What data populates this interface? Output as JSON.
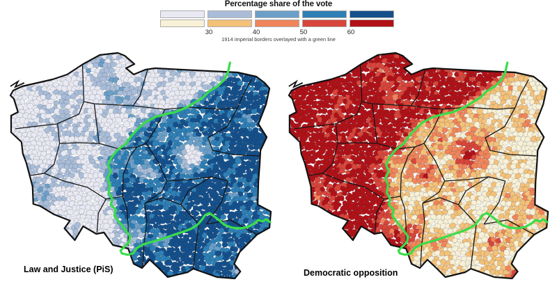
{
  "legend": {
    "title": "Percentage share of the vote",
    "subtitle": "1914 imperial borders overlayed with a green line",
    "tick_labels": [
      "30",
      "40",
      "50",
      "60"
    ],
    "class_breaks": [
      30,
      40,
      50,
      60
    ]
  },
  "colors": {
    "pis_scale": [
      "#e8e9f2",
      "#a9bdd9",
      "#6b9fc8",
      "#2e7fb5",
      "#14508c"
    ],
    "opposition_scale": [
      "#f8f1d7",
      "#f4c179",
      "#f0845a",
      "#d8453a",
      "#b11117"
    ],
    "imperial_border_green": "#39dd49",
    "national_border": "#111111",
    "province_border": "#161616",
    "municipality_border": "#24303a"
  },
  "maps": [
    {
      "id": "pis",
      "label": "Law and Justice (PiS)",
      "scale": "pis_scale",
      "spatial_pattern": "high share (50-60%+) east and south of the green 1914 border (former Russian and Austrian partitions); low share (<30-40%) in the west (former Prussian partition) and in large cities"
    },
    {
      "id": "opposition",
      "label": "Democratic opposition",
      "scale": "opposition_scale",
      "spatial_pattern": "high share (50-60%+) in the west (former Prussian partition) and in large cities; low share (<30-40%) east and south of the green 1914 border"
    }
  ],
  "chart_data": {
    "type": "choropleth",
    "title": "Percentage share of the vote",
    "unit": "percent",
    "class_breaks": [
      30,
      40,
      50,
      60
    ],
    "panels": [
      {
        "name": "Law and Justice (PiS)",
        "palette_ref": "pis_scale"
      },
      {
        "name": "Democratic opposition",
        "palette_ref": "opposition_scale"
      }
    ],
    "annotation": "1914 imperial borders overlayed with a green line"
  },
  "geometry": {
    "poland_outline": [
      [
        17,
        66
      ],
      [
        30,
        60
      ],
      [
        52,
        55
      ],
      [
        74,
        50
      ],
      [
        95,
        43
      ],
      [
        118,
        28
      ],
      [
        142,
        15
      ],
      [
        168,
        12
      ],
      [
        178,
        16
      ],
      [
        192,
        28
      ],
      [
        180,
        34
      ],
      [
        191,
        43
      ],
      [
        208,
        36
      ],
      [
        222,
        34
      ],
      [
        260,
        36
      ],
      [
        300,
        38
      ],
      [
        341,
        40
      ],
      [
        368,
        46
      ],
      [
        380,
        55
      ],
      [
        387,
        63
      ],
      [
        382,
        86
      ],
      [
        371,
        114
      ],
      [
        383,
        133
      ],
      [
        374,
        152
      ],
      [
        373,
        170
      ],
      [
        371,
        196
      ],
      [
        370,
        230
      ],
      [
        389,
        240
      ],
      [
        387,
        263
      ],
      [
        369,
        273
      ],
      [
        344,
        298
      ],
      [
        336,
        315
      ],
      [
        345,
        326
      ],
      [
        337,
        336
      ],
      [
        311,
        334
      ],
      [
        277,
        322
      ],
      [
        269,
        327
      ],
      [
        240,
        334
      ],
      [
        227,
        321
      ],
      [
        214,
        309
      ],
      [
        203,
        321
      ],
      [
        191,
        315
      ],
      [
        183,
        293
      ],
      [
        161,
        288
      ],
      [
        148,
        270
      ],
      [
        137,
        272
      ],
      [
        118,
        261
      ],
      [
        106,
        281
      ],
      [
        91,
        264
      ],
      [
        99,
        253
      ],
      [
        76,
        244
      ],
      [
        56,
        232
      ],
      [
        46,
        229
      ],
      [
        45,
        204
      ],
      [
        36,
        170
      ],
      [
        31,
        157
      ],
      [
        29,
        140
      ],
      [
        14,
        126
      ],
      [
        14,
        102
      ],
      [
        24,
        97
      ],
      [
        18,
        78
      ],
      [
        13,
        73
      ]
    ],
    "imperial_border_1914": [
      [
        330,
        26
      ],
      [
        327,
        40
      ],
      [
        322,
        50
      ],
      [
        312,
        60
      ],
      [
        300,
        67
      ],
      [
        291,
        76
      ],
      [
        268,
        90
      ],
      [
        251,
        97
      ],
      [
        237,
        100
      ],
      [
        222,
        104
      ],
      [
        207,
        112
      ],
      [
        196,
        122
      ],
      [
        187,
        132
      ],
      [
        179,
        143
      ],
      [
        168,
        151
      ],
      [
        159,
        162
      ],
      [
        154,
        173
      ],
      [
        158,
        182
      ],
      [
        153,
        192
      ],
      [
        157,
        202
      ],
      [
        155,
        212
      ],
      [
        160,
        222
      ],
      [
        158,
        230
      ],
      [
        165,
        237
      ],
      [
        163,
        246
      ],
      [
        170,
        255
      ],
      [
        176,
        262
      ],
      [
        181,
        269
      ],
      [
        186,
        276
      ],
      [
        184,
        284
      ],
      [
        178,
        290
      ],
      [
        172,
        296
      ],
      [
        174,
        300
      ],
      [
        182,
        302
      ],
      [
        190,
        300
      ],
      [
        196,
        292
      ],
      [
        205,
        287
      ],
      [
        215,
        284
      ],
      [
        226,
        281
      ],
      [
        238,
        277
      ],
      [
        250,
        273
      ],
      [
        262,
        269
      ],
      [
        273,
        265
      ],
      [
        283,
        259
      ],
      [
        290,
        251
      ],
      [
        294,
        245
      ],
      [
        300,
        242
      ],
      [
        306,
        246
      ],
      [
        314,
        252
      ],
      [
        322,
        259
      ],
      [
        333,
        263
      ],
      [
        345,
        264
      ],
      [
        356,
        262
      ],
      [
        365,
        257
      ],
      [
        371,
        252
      ],
      [
        377,
        254
      ],
      [
        382,
        251
      ],
      [
        388,
        255
      ]
    ],
    "coast_mark": [
      [
        13,
        60
      ],
      [
        24,
        53
      ],
      [
        20,
        61
      ],
      [
        33,
        55
      ]
    ],
    "province_borders": [
      [
        [
          117,
          27
        ],
        [
          119,
          82
        ],
        [
          112,
          100
        ],
        [
          80,
          114
        ],
        [
          44,
          118
        ],
        [
          20,
          121
        ]
      ],
      [
        [
          211,
          36
        ],
        [
          200,
          74
        ],
        [
          190,
          88
        ],
        [
          134,
          85
        ],
        [
          119,
          82
        ]
      ],
      [
        [
          190,
          88
        ],
        [
          236,
          93
        ],
        [
          272,
          90
        ],
        [
          316,
          93
        ],
        [
          341,
          91
        ],
        [
          349,
          72
        ],
        [
          361,
          50
        ]
      ],
      [
        [
          341,
          91
        ],
        [
          326,
          118
        ],
        [
          298,
          134
        ],
        [
          305,
          152
        ],
        [
          334,
          158
        ],
        [
          372,
          160
        ]
      ],
      [
        [
          236,
          93
        ],
        [
          222,
          122
        ],
        [
          209,
          142
        ],
        [
          226,
          168
        ],
        [
          239,
          196
        ]
      ],
      [
        [
          239,
          196
        ],
        [
          272,
          194
        ],
        [
          303,
          190
        ],
        [
          327,
          196
        ]
      ],
      [
        [
          327,
          196
        ],
        [
          318,
          226
        ],
        [
          296,
          258
        ]
      ],
      [
        [
          296,
          258
        ],
        [
          330,
          252
        ],
        [
          369,
          273
        ]
      ],
      [
        [
          141,
          142
        ],
        [
          170,
          150
        ],
        [
          196,
          147
        ],
        [
          209,
          142
        ]
      ],
      [
        [
          134,
          85
        ],
        [
          141,
          142
        ]
      ],
      [
        [
          84,
          142
        ],
        [
          112,
          141
        ],
        [
          141,
          142
        ]
      ],
      [
        [
          81,
          113
        ],
        [
          84,
          142
        ],
        [
          76,
          172
        ],
        [
          62,
          185
        ]
      ],
      [
        [
          62,
          185
        ],
        [
          42,
          188
        ]
      ],
      [
        [
          62,
          185
        ],
        [
          90,
          196
        ],
        [
          124,
          205
        ],
        [
          151,
          222
        ],
        [
          175,
          218
        ]
      ],
      [
        [
          175,
          218
        ],
        [
          176,
          186
        ],
        [
          186,
          160
        ],
        [
          196,
          147
        ]
      ],
      [
        [
          175,
          218
        ],
        [
          181,
          235
        ],
        [
          183,
          260
        ],
        [
          183,
          289
        ]
      ],
      [
        [
          151,
          222
        ],
        [
          140,
          242
        ],
        [
          138,
          270
        ]
      ],
      [
        [
          207,
          228
        ],
        [
          210,
          255
        ],
        [
          206,
          285
        ],
        [
          204,
          318
        ]
      ],
      [
        [
          285,
          258
        ],
        [
          281,
          288
        ],
        [
          277,
          321
        ]
      ],
      [
        [
          207,
          228
        ],
        [
          232,
          220
        ],
        [
          259,
          230
        ],
        [
          285,
          258
        ]
      ],
      [
        [
          259,
          230
        ],
        [
          270,
          210
        ],
        [
          303,
          190
        ]
      ],
      [
        [
          239,
          196
        ],
        [
          231,
          212
        ],
        [
          207,
          228
        ]
      ]
    ]
  }
}
